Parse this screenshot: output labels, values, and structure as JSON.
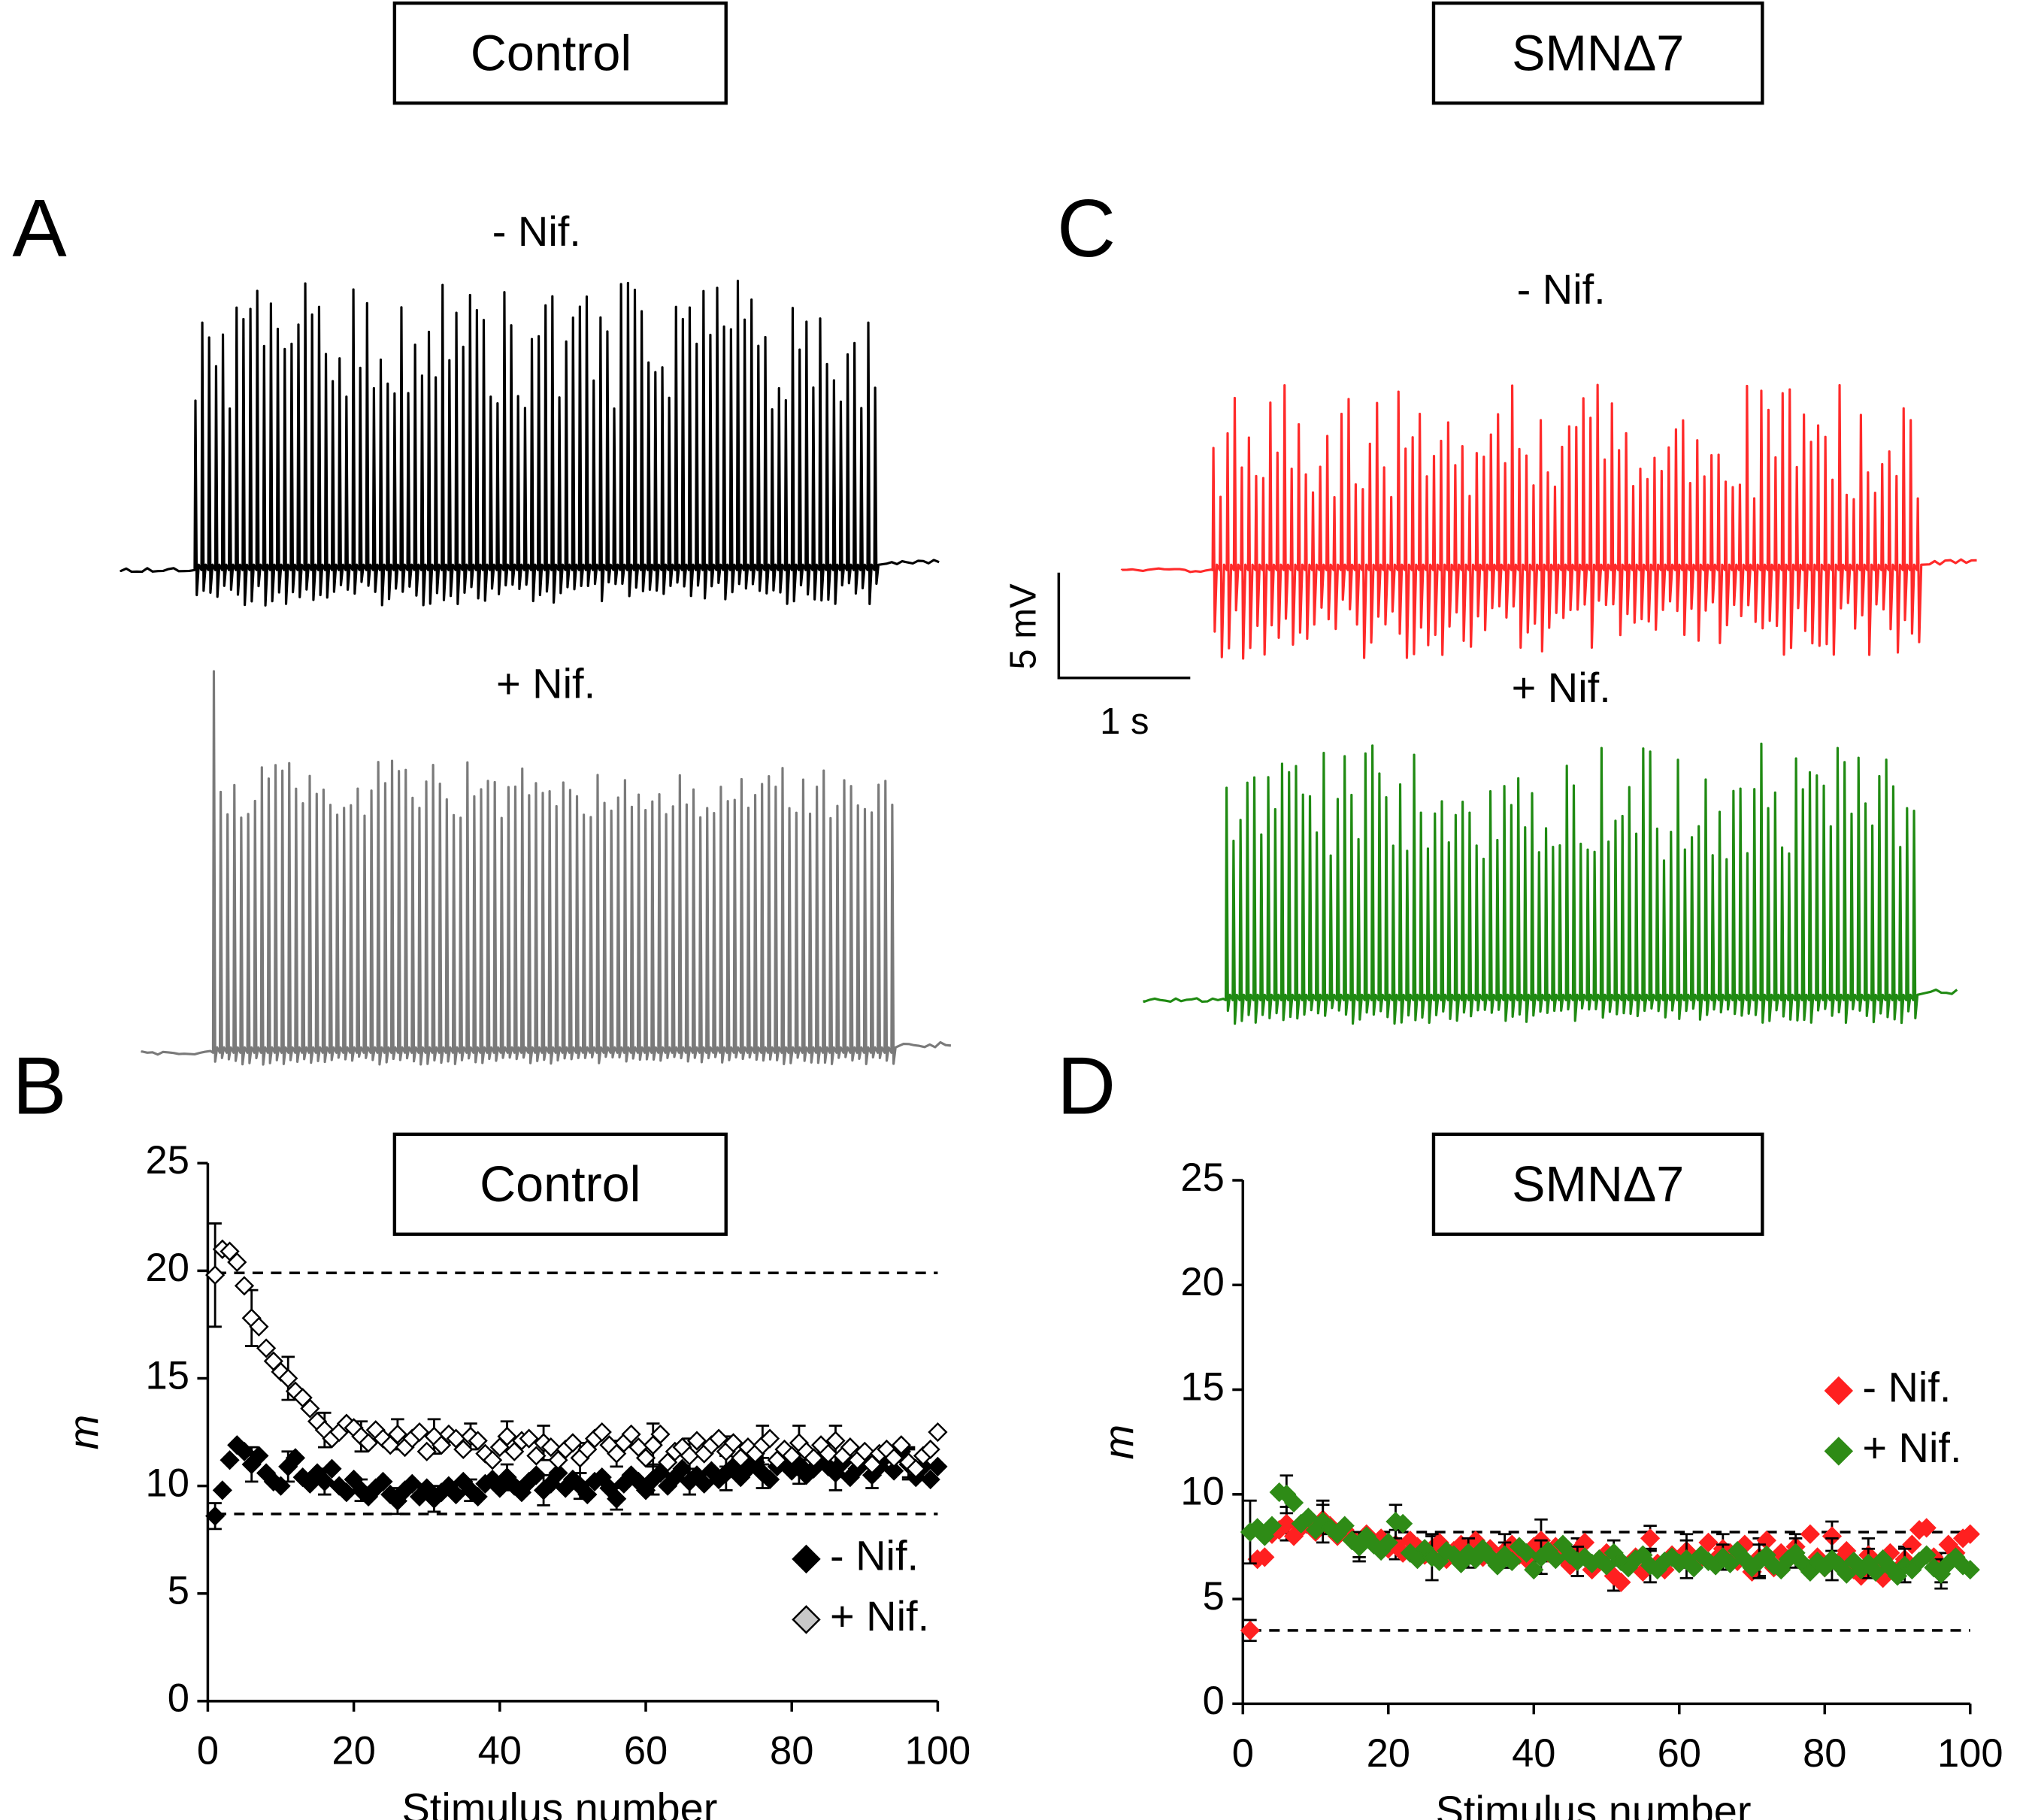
{
  "headers": [
    "Control",
    "SMNΔ7"
  ],
  "panel_letters": [
    "A",
    "B",
    "C",
    "D"
  ],
  "traces": [
    {
      "label": "- Nif.",
      "color": "#000000"
    },
    {
      "label": "+ Nif.",
      "color": "#7a7a7a"
    },
    {
      "label": "- Nif.",
      "color": "#ff2a2a"
    },
    {
      "label": "+ Nif.",
      "color": "#1f8a12"
    }
  ],
  "scale_bar": {
    "y_label": "5 mV",
    "x_label": "1 s"
  },
  "chart_data": [
    {
      "type": "scatter",
      "title": "Control",
      "xlabel": "Stimulus number",
      "ylabel": "m",
      "xlim": [
        0,
        100
      ],
      "ylim": [
        0,
        25
      ],
      "xticks": [
        0,
        20,
        40,
        60,
        80,
        100
      ],
      "yticks": [
        0,
        5,
        10,
        15,
        20,
        25
      ],
      "hlines": [
        19.9,
        8.7
      ],
      "legend": "lower right",
      "x": [
        1,
        2,
        3,
        4,
        5,
        6,
        7,
        8,
        9,
        10,
        11,
        12,
        13,
        14,
        15,
        16,
        17,
        18,
        19,
        20,
        21,
        22,
        23,
        24,
        25,
        26,
        27,
        28,
        29,
        30,
        31,
        32,
        33,
        34,
        35,
        36,
        37,
        38,
        39,
        40,
        41,
        42,
        43,
        44,
        45,
        46,
        47,
        48,
        49,
        50,
        51,
        52,
        53,
        54,
        55,
        56,
        57,
        58,
        59,
        60,
        61,
        62,
        63,
        64,
        65,
        66,
        67,
        68,
        69,
        70,
        71,
        72,
        73,
        74,
        75,
        76,
        77,
        78,
        79,
        80,
        81,
        82,
        83,
        84,
        85,
        86,
        87,
        88,
        89,
        90,
        91,
        92,
        93,
        94,
        95,
        96,
        97,
        98,
        99,
        100
      ],
      "error_x": [
        1,
        6,
        11,
        16,
        21,
        26,
        31,
        36,
        41,
        46,
        51,
        56,
        61,
        66,
        71,
        76,
        81,
        86,
        91,
        96
      ],
      "series": [
        {
          "name": "- Nif.",
          "color": "#000000",
          "edgecolor": "#000000",
          "legend_color": "#000000",
          "values": [
            8.6,
            9.8,
            11.2,
            11.9,
            11.6,
            11.0,
            11.4,
            10.6,
            10.2,
            10.0,
            10.9,
            11.3,
            10.4,
            10.1,
            10.6,
            10.2,
            10.8,
            10.0,
            9.7,
            10.3,
            9.8,
            9.5,
            9.9,
            10.2,
            9.6,
            9.3,
            9.8,
            10.1,
            9.5,
            9.9,
            9.4,
            9.7,
            10.0,
            9.6,
            10.2,
            9.8,
            9.5,
            10.1,
            10.3,
            9.9,
            10.4,
            10.0,
            9.7,
            10.2,
            10.5,
            9.8,
            10.1,
            10.6,
            9.9,
            10.3,
            10.0,
            9.6,
            10.2,
            10.4,
            9.9,
            9.4,
            10.1,
            10.5,
            10.2,
            9.8,
            10.3,
            10.6,
            10.0,
            10.4,
            10.8,
            10.2,
            10.5,
            10.1,
            10.7,
            10.3,
            10.6,
            10.9,
            10.4,
            10.8,
            11.1,
            10.6,
            10.3,
            10.9,
            11.2,
            10.7,
            11.0,
            10.5,
            10.8,
            11.3,
            10.9,
            10.6,
            11.1,
            10.4,
            10.8,
            11.2,
            10.5,
            10.9,
            11.4,
            10.7,
            11.6,
            11.0,
            10.4,
            10.9,
            10.3,
            10.9
          ],
          "errors": [
            0.6,
            0.8,
            0.7,
            0.6,
            0.5,
            0.6,
            0.6,
            0.5,
            0.6,
            0.7,
            0.6,
            0.5,
            0.7,
            0.6,
            0.8,
            0.7,
            0.9,
            0.8,
            0.6,
            0.7
          ]
        },
        {
          "name": "+ Nif.",
          "color": "#ffffff",
          "edgecolor": "#000000",
          "legend_color": "#c8c8c8",
          "values": [
            19.8,
            21.0,
            20.9,
            20.4,
            19.3,
            17.8,
            17.4,
            16.4,
            15.8,
            15.3,
            15.0,
            14.4,
            14.1,
            13.6,
            13.0,
            12.6,
            12.2,
            12.5,
            12.9,
            12.7,
            12.3,
            12.0,
            12.6,
            12.2,
            11.9,
            12.4,
            11.8,
            12.2,
            12.5,
            11.6,
            12.3,
            11.9,
            12.4,
            12.2,
            11.7,
            12.3,
            12.1,
            11.5,
            11.2,
            11.8,
            12.3,
            11.6,
            12.1,
            12.2,
            11.4,
            12.0,
            11.8,
            11.2,
            11.7,
            12.0,
            11.3,
            11.7,
            12.2,
            12.5,
            11.9,
            11.5,
            12.0,
            12.4,
            11.8,
            11.3,
            11.9,
            12.4,
            11.1,
            11.6,
            11.8,
            11.4,
            12.1,
            11.5,
            11.9,
            12.2,
            11.6,
            12.0,
            11.3,
            11.8,
            11.5,
            11.9,
            12.2,
            11.2,
            11.7,
            11.4,
            12.0,
            11.6,
            11.3,
            11.9,
            11.5,
            12.1,
            11.4,
            11.8,
            11.2,
            11.6,
            11.0,
            11.5,
            11.7,
            11.3,
            11.9,
            11.1,
            10.8,
            11.4,
            11.7,
            12.5
          ],
          "errors": [
            2.4,
            1.3,
            1.0,
            0.8,
            0.7,
            0.7,
            0.8,
            0.6,
            0.7,
            0.8,
            0.7,
            0.6,
            1.0,
            0.8,
            0.7,
            0.9,
            0.8,
            0.7,
            0.6,
            0.7
          ]
        }
      ]
    },
    {
      "type": "scatter",
      "title": "SMNΔ7",
      "xlabel": "Stimulus number",
      "ylabel": "m",
      "xlim": [
        0,
        100
      ],
      "ylim": [
        0,
        25
      ],
      "xticks": [
        0,
        20,
        40,
        60,
        80,
        100
      ],
      "yticks": [
        0,
        5,
        10,
        15,
        20,
        25
      ],
      "hlines": [
        8.2,
        3.5
      ],
      "legend": "center right",
      "x": [
        1,
        2,
        3,
        4,
        5,
        6,
        7,
        8,
        9,
        10,
        11,
        12,
        13,
        14,
        15,
        16,
        17,
        18,
        19,
        20,
        21,
        22,
        23,
        24,
        25,
        26,
        27,
        28,
        29,
        30,
        31,
        32,
        33,
        34,
        35,
        36,
        37,
        38,
        39,
        40,
        41,
        42,
        43,
        44,
        45,
        46,
        47,
        48,
        49,
        50,
        51,
        52,
        53,
        54,
        55,
        56,
        57,
        58,
        59,
        60,
        61,
        62,
        63,
        64,
        65,
        66,
        67,
        68,
        69,
        70,
        71,
        72,
        73,
        74,
        75,
        76,
        77,
        78,
        79,
        80,
        81,
        82,
        83,
        84,
        85,
        86,
        87,
        88,
        89,
        90,
        91,
        92,
        93,
        94,
        95,
        96,
        97,
        98,
        99,
        100
      ],
      "error_x": [
        1,
        6,
        11,
        16,
        21,
        26,
        31,
        36,
        41,
        46,
        51,
        56,
        61,
        66,
        71,
        76,
        81,
        86,
        91,
        96
      ],
      "series": [
        {
          "name": "- Nif.",
          "color": "#ff2020",
          "edgecolor": "#ff2020",
          "legend_color": "#ff2020",
          "values": [
            3.5,
            6.9,
            7.0,
            8.1,
            8.3,
            8.6,
            8.0,
            8.4,
            8.7,
            8.2,
            8.8,
            8.5,
            8.0,
            8.3,
            7.9,
            7.6,
            8.1,
            7.7,
            7.9,
            7.4,
            7.6,
            7.2,
            7.8,
            7.5,
            7.1,
            7.4,
            7.7,
            6.9,
            7.3,
            7.6,
            7.2,
            7.8,
            7.0,
            7.4,
            6.8,
            7.3,
            7.6,
            7.1,
            6.9,
            7.5,
            7.8,
            7.2,
            7.5,
            7.0,
            6.6,
            7.3,
            7.7,
            6.4,
            6.9,
            7.2,
            6.1,
            5.8,
            6.6,
            7.0,
            6.3,
            7.9,
            6.7,
            6.4,
            7.1,
            6.8,
            7.3,
            6.6,
            7.0,
            7.7,
            6.9,
            7.4,
            7.2,
            6.8,
            7.6,
            6.3,
            7.0,
            7.8,
            6.5,
            7.2,
            6.9,
            7.5,
            6.7,
            8.1,
            7.0,
            6.5,
            8.0,
            6.8,
            7.3,
            6.4,
            6.1,
            7.1,
            6.6,
            6.0,
            7.2,
            6.4,
            6.9,
            7.6,
            8.3,
            8.4,
            7.0,
            6.5,
            7.6,
            7.2,
            7.9,
            8.1
          ],
          "errors": [
            0.5,
            0.8,
            0.7,
            0.6,
            0.7,
            0.6,
            0.5,
            0.8,
            1.0,
            0.6,
            0.7,
            0.6,
            0.8,
            0.7,
            0.9,
            0.6,
            0.7,
            0.8,
            0.6,
            0.7
          ]
        },
        {
          "name": "+ Nif.",
          "color": "#2e8b16",
          "edgecolor": "#2e8b16",
          "legend_color": "#2e8b16",
          "values": [
            8.2,
            8.4,
            8.0,
            8.5,
            10.1,
            10.0,
            9.6,
            8.6,
            8.9,
            8.3,
            8.7,
            8.4,
            8.1,
            8.5,
            7.8,
            7.5,
            8.0,
            7.6,
            7.3,
            7.7,
            8.7,
            8.6,
            7.2,
            6.9,
            7.4,
            7.0,
            6.8,
            7.3,
            7.1,
            6.7,
            7.2,
            6.9,
            7.4,
            7.0,
            6.6,
            7.1,
            6.8,
            7.5,
            7.2,
            6.4,
            7.0,
            7.3,
            6.9,
            7.6,
            7.1,
            6.8,
            7.0,
            6.7,
            6.9,
            6.6,
            7.2,
            6.8,
            6.5,
            6.9,
            7.1,
            6.6,
            6.4,
            6.8,
            7.0,
            6.7,
            6.9,
            6.5,
            7.1,
            6.8,
            6.6,
            7.0,
            6.7,
            7.3,
            6.9,
            6.5,
            6.8,
            7.1,
            6.6,
            6.4,
            6.9,
            7.2,
            6.7,
            6.3,
            6.8,
            6.5,
            6.9,
            6.6,
            6.2,
            6.8,
            6.4,
            6.7,
            6.3,
            6.9,
            6.5,
            6.1,
            6.6,
            6.4,
            6.8,
            7.1,
            6.5,
            6.2,
            6.7,
            7.0,
            6.6,
            6.4
          ],
          "errors": [
            1.5,
            0.9,
            1.0,
            0.7,
            0.8,
            1.1,
            0.7,
            0.6,
            0.8,
            0.7,
            0.6,
            0.8,
            0.9,
            0.6,
            0.8,
            0.7,
            1.0,
            0.7,
            0.8,
            0.7
          ]
        }
      ]
    }
  ]
}
